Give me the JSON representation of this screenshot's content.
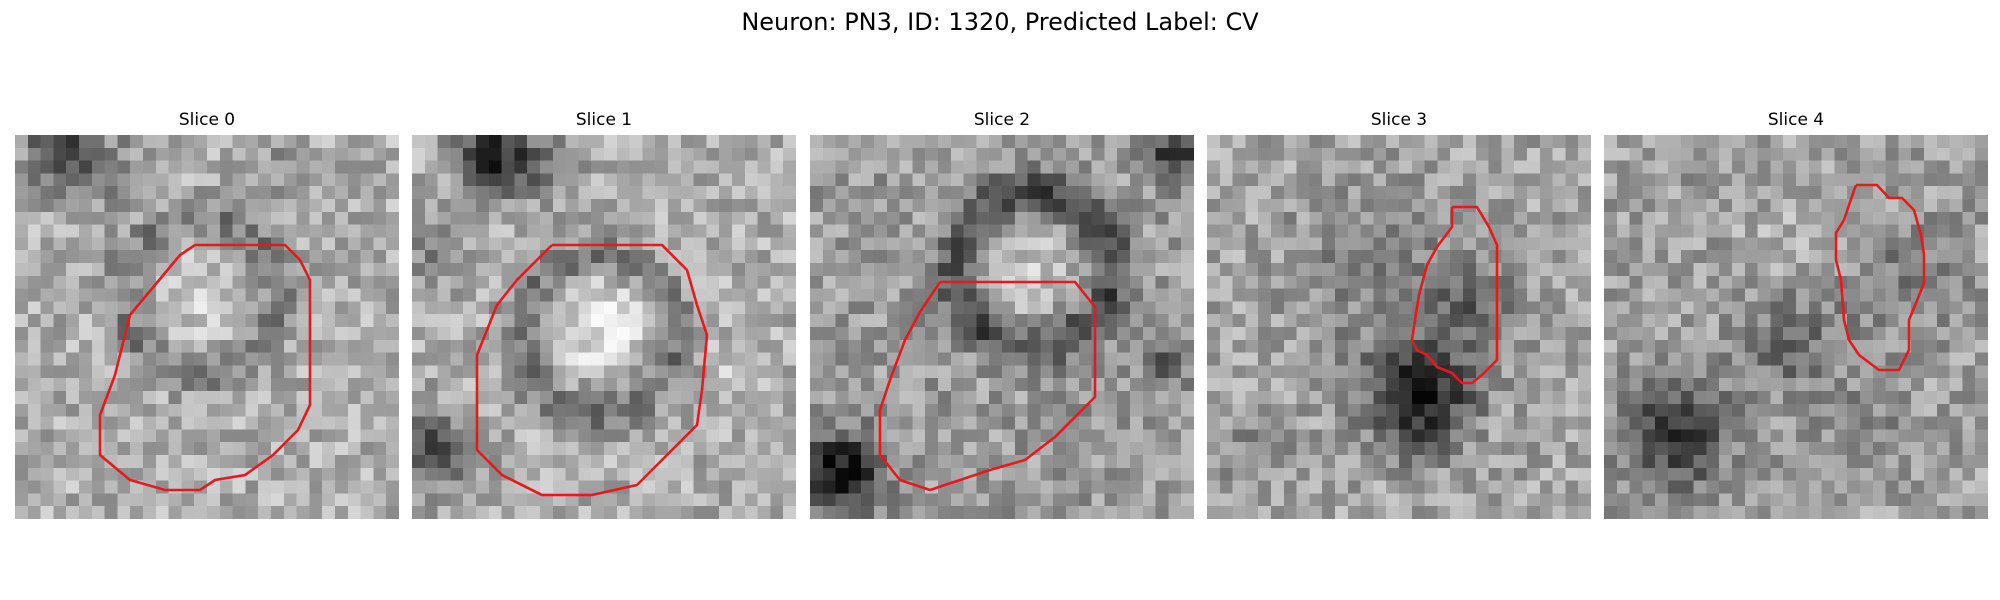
{
  "figure": {
    "title": "Neuron: PN3, ID: 1320, Predicted Label: CV"
  },
  "style": {
    "contour_color": "#e41a1c",
    "colormap": "gray"
  },
  "slices": [
    {
      "title": "Slice 0"
    },
    {
      "title": "Slice 1"
    },
    {
      "title": "Slice 2"
    },
    {
      "title": "Slice 3"
    },
    {
      "title": "Slice 4"
    }
  ]
}
